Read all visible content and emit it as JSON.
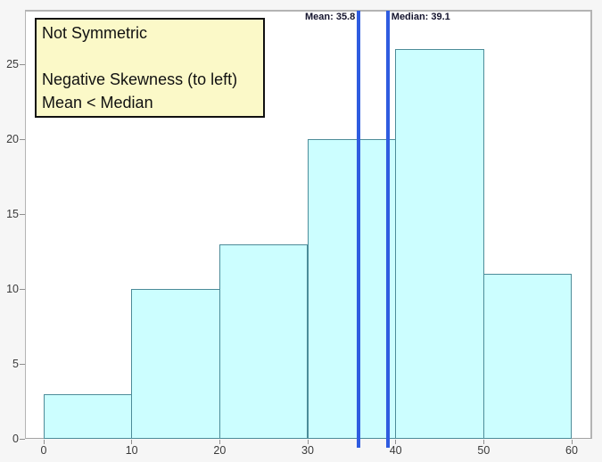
{
  "chart_data": {
    "type": "bar",
    "subtype": "histogram",
    "title": "",
    "xlabel": "",
    "ylabel": "",
    "bin_edges": [
      0,
      10,
      20,
      30,
      40,
      50,
      60
    ],
    "categories": [
      "0-10",
      "10-20",
      "20-30",
      "30-40",
      "40-50",
      "50-60"
    ],
    "values": [
      3,
      10,
      13,
      20,
      26,
      11
    ],
    "x_ticks": [
      0,
      10,
      20,
      30,
      40,
      50,
      60
    ],
    "y_ticks": [
      0,
      5,
      10,
      15,
      20,
      25
    ],
    "xlim": [
      0,
      60
    ],
    "ylim": [
      0,
      28.6
    ],
    "grid": false,
    "legend": "none",
    "mean": {
      "value": 35.8,
      "label": "Mean: 35.8"
    },
    "median": {
      "value": 39.1,
      "label": "Median: 39.1"
    },
    "colors": {
      "bar_fill": "#ccfeff",
      "bar_stroke": "#4d8c99",
      "reference_line": "#2f5ce0",
      "reference_label": "#15152e",
      "plot_background": "#ffffff",
      "page_background": "#f6f6f6",
      "tick": "#8f8f8f",
      "tick_label": "#3a3a3a"
    }
  },
  "annotation_box": {
    "lines": [
      "Not Symmetric",
      "",
      "Negative Skewness (to left)",
      "Mean < Median"
    ],
    "background": "#fbf9c8",
    "border": "#111111"
  }
}
